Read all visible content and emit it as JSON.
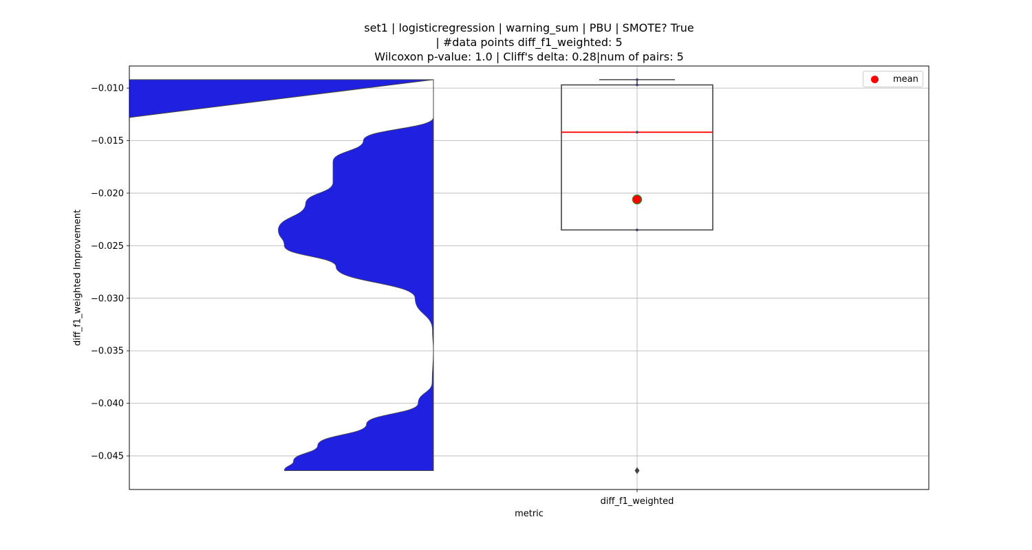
{
  "title_lines": [
    "set1 | logisticregression | warning_sum | PBU | SMOTE? True",
    "| #data points diff_f1_weighted: 5",
    "Wilcoxon p-value: 1.0 | Cliff's delta: 0.28|num of pairs: 5"
  ],
  "axes": {
    "xlabel": "metric",
    "ylabel": "diff_f1_weighted Improvement"
  },
  "legend": {
    "mean_label": "mean"
  },
  "colors": {
    "violin_fill": "#2020e0",
    "outline": "#444444",
    "median": "#ff0000",
    "mean_marker": "#ff0000",
    "mean_edge": "#228b22",
    "grid": "#b0b0b0"
  },
  "chart_data": {
    "type": "violin+box",
    "categories": [
      "diff_f1_weighted"
    ],
    "ylim": [
      -0.0482,
      -0.0079
    ],
    "yticks": [
      -0.01,
      -0.015,
      -0.02,
      -0.025,
      -0.03,
      -0.035,
      -0.04,
      -0.045
    ],
    "ytick_labels": [
      "−0.010",
      "−0.015",
      "−0.020",
      "−0.025",
      "−0.030",
      "−0.035",
      "−0.040",
      "−0.045"
    ],
    "grid": true,
    "legend_position": "top-right",
    "box": {
      "q1": -0.0235,
      "median": -0.0142,
      "q3": -0.0097,
      "whisker_low": -0.0235,
      "whisker_high": -0.0092,
      "mean": -0.0206,
      "outliers": [
        -0.0464
      ]
    },
    "points": [
      -0.0092,
      -0.0097,
      -0.0142,
      -0.0235,
      -0.0464
    ],
    "violin": {
      "y_top": -0.0092,
      "y_bottom": -0.0464,
      "density": [
        [
          -0.0092,
          0.0
        ],
        [
          -0.0128,
          0.0
        ],
        [
          -0.015,
          0.23
        ],
        [
          -0.017,
          0.33
        ],
        [
          -0.019,
          0.33
        ],
        [
          -0.021,
          0.42
        ],
        [
          -0.0235,
          0.51
        ],
        [
          -0.025,
          0.49
        ],
        [
          -0.027,
          0.32
        ],
        [
          -0.03,
          0.06
        ],
        [
          -0.033,
          0.003
        ],
        [
          -0.035,
          0.0
        ],
        [
          -0.038,
          0.004
        ],
        [
          -0.04,
          0.05
        ],
        [
          -0.042,
          0.22
        ],
        [
          -0.044,
          0.38
        ],
        [
          -0.0455,
          0.46
        ],
        [
          -0.0464,
          0.49
        ]
      ]
    }
  }
}
